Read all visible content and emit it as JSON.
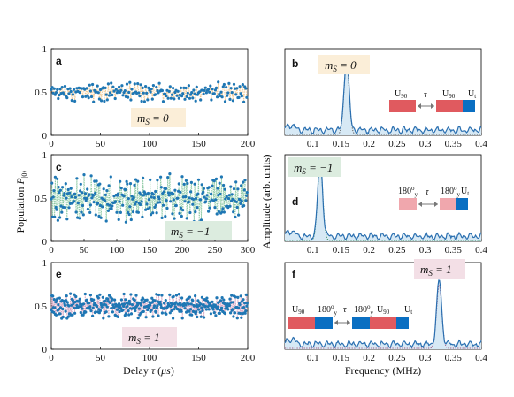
{
  "colors": {
    "data_blue": "#1f77b4",
    "spectrum_line": "#2a6fb0",
    "spectrum_fill": "#d7e9f5",
    "fit_ms0": "#f1c68c",
    "fit_msm1": "#8cc9a3",
    "fit_ms1": "#d9a6c2",
    "badge_ms0": "#fbeed8",
    "badge_msm1": "#dcecdf",
    "badge_ms1": "#f3dfe6",
    "pulse_red": "#e05a5f",
    "pulse_pink": "#f0a7ad",
    "pulse_blue": "#0a6fc2",
    "dotted_ms0": "#555555",
    "dotted_msm1": "#2e8b57",
    "dotted_ms1": "#a0527d"
  },
  "figure": {
    "ylabel_left": "Population $P_{|0\\rangle}$",
    "xlabel_left": "Delay τ (μs)",
    "ylabel_right": "Amplitude (arb. units)",
    "xlabel_right": "Frequency (MHz)"
  },
  "chart_data": [
    {
      "id": "a",
      "type": "scatter",
      "panel_label": "a",
      "annotation": "mS = 0",
      "xlim": [
        0,
        200
      ],
      "ylim": [
        0,
        1
      ],
      "xticks": [
        "0",
        "50",
        "100",
        "150",
        "200"
      ],
      "yticks": [
        "0",
        "0.5",
        "1"
      ],
      "n_points": 200,
      "x_step": 1,
      "y_mean": 0.5,
      "y_spread": 0.12
    },
    {
      "id": "b",
      "type": "line",
      "panel_label": "b",
      "annotation": "mS = 0",
      "xlim": [
        0.05,
        0.4
      ],
      "ylim": [
        0,
        1
      ],
      "xticks": [
        "0.1",
        "0.15",
        "0.2",
        "0.25",
        "0.3",
        "0.35",
        "0.4"
      ],
      "peak_MHz": 0.16,
      "peak_amplitude": 0.85,
      "pulse_labels": [
        "U90",
        "τ",
        "U90",
        "Ut"
      ]
    },
    {
      "id": "c",
      "type": "scatter",
      "panel_label": "c",
      "annotation": "mS = −1",
      "xlim": [
        0,
        300
      ],
      "ylim": [
        0,
        1
      ],
      "xticks": [
        "0",
        "50",
        "100",
        "150",
        "200",
        "250",
        "300"
      ],
      "yticks": [
        "0",
        "0.5",
        "1"
      ],
      "n_points": 300,
      "x_step": 1,
      "y_mean": 0.5,
      "y_spread": 0.28
    },
    {
      "id": "d",
      "type": "line",
      "panel_label": "d",
      "annotation": "mS = −1",
      "xlim": [
        0.05,
        0.4
      ],
      "ylim": [
        0,
        1
      ],
      "xticks": [
        "0.1",
        "0.15",
        "0.2",
        "0.25",
        "0.3",
        "0.35",
        "0.4"
      ],
      "peak_MHz": 0.113,
      "peak_amplitude": 0.9,
      "pulse_labels": [
        "180°y",
        "τ",
        "180°y",
        "Ut"
      ]
    },
    {
      "id": "e",
      "type": "scatter",
      "panel_label": "e",
      "annotation": "mS = 1",
      "xlim": [
        0,
        200
      ],
      "ylim": [
        0,
        1
      ],
      "xticks": [
        "0",
        "50",
        "100",
        "150",
        "200"
      ],
      "yticks": [
        "0",
        "0.5",
        "1"
      ],
      "n_points": 400,
      "x_step": 0.5,
      "y_mean": 0.5,
      "y_spread": 0.15
    },
    {
      "id": "f",
      "type": "line",
      "panel_label": "f",
      "annotation": "mS = 1",
      "xlim": [
        0.05,
        0.4
      ],
      "ylim": [
        0,
        1
      ],
      "xticks": [
        "0.1",
        "0.15",
        "0.2",
        "0.25",
        "0.3",
        "0.35",
        "0.4"
      ],
      "peak_MHz": 0.325,
      "peak_amplitude": 0.75,
      "pulse_labels": [
        "U90",
        "180°y",
        "τ",
        "180°y",
        "U90",
        "Ut"
      ]
    }
  ]
}
